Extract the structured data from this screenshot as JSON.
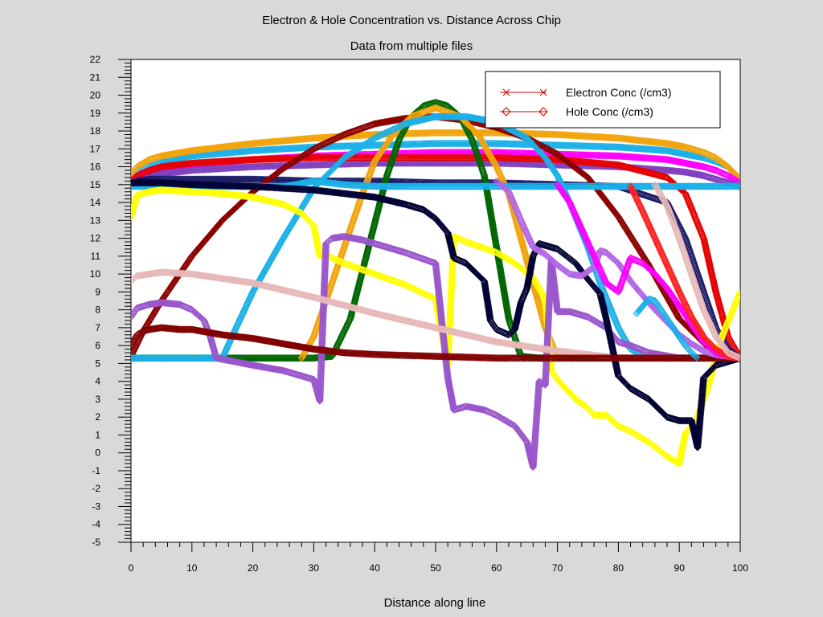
{
  "chart_data": {
    "type": "line",
    "title": "Electron & Hole Concentration vs. Distance Across Chip",
    "subtitle": "Data from multiple files",
    "xlabel": "Distance along line",
    "ylabel": "",
    "xlim": [
      0,
      100
    ],
    "ylim": [
      -5,
      22
    ],
    "x_ticks": [
      "0",
      "10",
      "20",
      "30",
      "40",
      "50",
      "60",
      "70",
      "80",
      "90",
      "100"
    ],
    "y_ticks": [
      "-5",
      "-4",
      "-3",
      "-2",
      "-1",
      "0",
      "1",
      "2",
      "3",
      "4",
      "5",
      "6",
      "7",
      "8",
      "9",
      "10",
      "11",
      "12",
      "13",
      "14",
      "15",
      "16",
      "17",
      "18",
      "19",
      "20",
      "21",
      "22"
    ],
    "grid": false,
    "legend": {
      "position": "top-right",
      "entries": [
        {
          "label": "Electron Conc (/cm3)",
          "color": "#cc0000",
          "marker": "x"
        },
        {
          "label": "Hole Conc (/cm3)",
          "color": "#cc0000",
          "marker": "diamond"
        }
      ]
    },
    "series": [
      {
        "color": "#1ab0e8",
        "marker": "diamond",
        "x": [
          0,
          1,
          3,
          5,
          10,
          20,
          30,
          40,
          50,
          60,
          70,
          80,
          88,
          91,
          94,
          96,
          98,
          100
        ],
        "y": [
          15.4,
          15.8,
          16.1,
          16.3,
          16.6,
          16.9,
          17.1,
          17.2,
          17.3,
          17.3,
          17.2,
          17.1,
          16.9,
          16.7,
          16.5,
          16.3,
          16.0,
          15.2
        ]
      },
      {
        "color": "#f2a30a",
        "marker": "diamond",
        "x": [
          0,
          1,
          3,
          5,
          10,
          20,
          30,
          40,
          50,
          60,
          70,
          80,
          88,
          91,
          94,
          96,
          98,
          100
        ],
        "y": [
          15.6,
          16.0,
          16.4,
          16.6,
          16.9,
          17.3,
          17.6,
          17.8,
          17.9,
          17.9,
          17.8,
          17.6,
          17.3,
          17.1,
          16.8,
          16.5,
          16.0,
          15.3
        ]
      },
      {
        "color": "#ff00ff",
        "marker": "diamond",
        "x": [
          0,
          1,
          3,
          5,
          10,
          20,
          30,
          40,
          50,
          60,
          70,
          80,
          88,
          91,
          94,
          96,
          98,
          100
        ],
        "y": [
          15.1,
          15.4,
          15.7,
          15.9,
          16.1,
          16.4,
          16.6,
          16.7,
          16.8,
          16.8,
          16.7,
          16.6,
          16.4,
          16.2,
          16.0,
          15.8,
          15.5,
          15.1
        ]
      },
      {
        "color": "#7f3fbf",
        "marker": "diamond",
        "x": [
          0,
          1,
          3,
          5,
          10,
          20,
          30,
          40,
          50,
          60,
          70,
          80,
          88,
          91,
          94,
          96,
          98,
          100
        ],
        "y": [
          15.0,
          15.3,
          15.5,
          15.6,
          15.8,
          16.0,
          16.1,
          16.2,
          16.2,
          16.2,
          16.1,
          16.0,
          15.8,
          15.7,
          15.5,
          15.3,
          15.1,
          14.9
        ]
      },
      {
        "color": "#e60000",
        "marker": "diamond",
        "x": [
          0,
          1,
          3,
          5,
          10,
          20,
          30,
          40,
          50,
          60,
          70,
          80,
          88,
          91,
          94,
          96,
          98,
          100
        ],
        "y": [
          15.2,
          15.5,
          15.8,
          16.0,
          16.2,
          16.4,
          16.5,
          16.5,
          16.5,
          16.5,
          16.4,
          16.1,
          15.4,
          14.5,
          12.0,
          9.0,
          6.5,
          5.3
        ]
      },
      {
        "color": "#1a1a66",
        "marker": "diamond",
        "x": [
          0,
          1,
          3,
          5,
          10,
          20,
          30,
          40,
          50,
          60,
          70,
          80,
          88,
          91,
          94,
          96,
          98,
          100
        ],
        "y": [
          15.0,
          15.2,
          15.3,
          15.3,
          15.3,
          15.3,
          15.2,
          15.2,
          15.1,
          15.1,
          15.0,
          14.9,
          14.0,
          12.0,
          9.0,
          7.0,
          5.8,
          5.3
        ]
      },
      {
        "color": "#8c0000",
        "marker": "diamond",
        "x": [
          0,
          2,
          5,
          10,
          15,
          20,
          25,
          30,
          35,
          40,
          45,
          50,
          55,
          60,
          65,
          70,
          75,
          80,
          85,
          90,
          95,
          100
        ],
        "y": [
          5.4,
          6.8,
          8.5,
          11.0,
          13.0,
          14.6,
          15.9,
          17.0,
          17.8,
          18.4,
          18.7,
          18.8,
          18.6,
          18.2,
          17.6,
          16.7,
          15.4,
          13.2,
          10.5,
          7.5,
          5.8,
          5.3
        ]
      },
      {
        "color": "#006600",
        "marker": "diamond",
        "x": [
          0,
          10,
          20,
          30,
          33,
          36,
          39,
          42,
          44,
          46,
          48,
          50,
          52,
          54,
          56,
          58,
          60,
          62,
          64,
          67,
          70,
          80,
          90,
          100
        ],
        "y": [
          5.3,
          5.3,
          5.3,
          5.3,
          5.4,
          7.5,
          11.5,
          15.5,
          17.5,
          18.8,
          19.4,
          19.6,
          19.4,
          18.8,
          17.5,
          15.5,
          11.5,
          7.5,
          5.4,
          5.3,
          5.3,
          5.3,
          5.3,
          5.3
        ]
      },
      {
        "color": "#f2a30a",
        "marker": "diamond",
        "x": [
          28,
          30,
          32,
          35,
          38,
          40,
          43,
          46,
          50,
          54,
          57,
          60,
          62,
          64,
          66,
          68,
          70
        ],
        "y": [
          5.3,
          6.5,
          8.5,
          11.5,
          14.5,
          16.3,
          17.8,
          18.8,
          19.3,
          18.8,
          17.8,
          16.0,
          14.5,
          12.0,
          9.5,
          7.0,
          5.3
        ]
      },
      {
        "color": "#1ab0e8",
        "marker": "diamond",
        "x": [
          0,
          10,
          15,
          17,
          20,
          25,
          30,
          35,
          40,
          45,
          50,
          55,
          60,
          65,
          68,
          70,
          72,
          75,
          77,
          80,
          82,
          85,
          88,
          92,
          94,
          96,
          100
        ],
        "y": [
          5.3,
          5.3,
          5.3,
          6.8,
          9.0,
          12.0,
          14.8,
          16.5,
          17.6,
          18.4,
          18.8,
          18.8,
          18.5,
          17.6,
          16.5,
          15.5,
          14.0,
          11.5,
          9.5,
          7.0,
          5.8,
          5.3,
          5.3,
          5.3,
          5.3,
          5.3,
          5.3
        ]
      },
      {
        "color": "#1ab0e8",
        "marker": "diamond",
        "x": [
          0,
          5,
          10,
          15,
          20,
          25,
          27,
          30,
          35,
          40,
          45,
          50,
          55,
          60,
          65,
          70,
          75,
          80,
          85,
          90,
          95,
          100
        ],
        "y": [
          14.9,
          14.9,
          14.9,
          14.9,
          14.9,
          14.9,
          15.0,
          15.2,
          15.0,
          14.9,
          14.9,
          14.9,
          14.9,
          14.9,
          14.9,
          14.9,
          14.9,
          14.9,
          14.9,
          14.9,
          14.9,
          14.9
        ]
      },
      {
        "color": "#ffff00",
        "marker": "diamond",
        "x": [
          0,
          1,
          3,
          5,
          10,
          15,
          20,
          25,
          28,
          30,
          31,
          32,
          33,
          35,
          40,
          45,
          50,
          52,
          53,
          55,
          60,
          63,
          66,
          68,
          69,
          70,
          73,
          75,
          76,
          78,
          80,
          82,
          85,
          88,
          90,
          91,
          92,
          93,
          95,
          97,
          100
        ],
        "y": [
          13.2,
          14.4,
          14.6,
          14.7,
          14.6,
          14.5,
          14.3,
          13.9,
          13.4,
          12.7,
          11.0,
          11.1,
          10.9,
          10.6,
          10.0,
          9.4,
          8.6,
          4.9,
          12.1,
          11.8,
          11.2,
          10.6,
          9.8,
          8.6,
          4.6,
          4.1,
          3.0,
          2.5,
          2.1,
          2.1,
          1.5,
          1.2,
          0.6,
          -0.2,
          -0.6,
          1.1,
          1.5,
          2.0,
          4.0,
          6.5,
          9.0
        ]
      },
      {
        "color": "#9955cc",
        "marker": "diamond",
        "x": [
          0,
          1,
          3,
          5,
          8,
          10,
          12,
          13,
          14,
          20,
          25,
          30,
          31,
          32,
          33,
          35,
          38,
          40,
          45,
          50,
          52,
          53,
          55,
          58,
          60,
          63,
          65,
          66,
          67,
          68,
          69,
          70,
          72,
          75,
          78,
          80,
          82,
          85,
          90,
          95,
          100
        ],
        "y": [
          7.6,
          8.1,
          8.3,
          8.4,
          8.3,
          8.0,
          7.4,
          6.5,
          5.3,
          4.9,
          4.6,
          4.1,
          2.9,
          11.7,
          12.0,
          12.1,
          11.9,
          11.7,
          11.2,
          10.6,
          4.2,
          2.4,
          2.6,
          2.4,
          2.1,
          1.5,
          0.6,
          -0.8,
          4.0,
          3.8,
          10.8,
          7.9,
          7.9,
          7.6,
          7.0,
          6.2,
          6.0,
          5.6,
          5.3,
          5.3,
          5.3
        ]
      },
      {
        "color": "#e8b8b8",
        "marker": "diamond",
        "x": [
          0,
          1,
          3,
          5,
          10,
          20,
          30,
          40,
          50,
          60,
          70,
          80,
          90,
          100
        ],
        "y": [
          9.6,
          9.9,
          10.0,
          10.1,
          10.0,
          9.5,
          8.7,
          7.8,
          7.0,
          6.2,
          5.7,
          5.3,
          5.3,
          5.3
        ]
      },
      {
        "color": "#000033",
        "marker": "diamond",
        "x": [
          0,
          5,
          10,
          20,
          30,
          40,
          45,
          48,
          50,
          52,
          53,
          55,
          58,
          59,
          60,
          62,
          63,
          64,
          65,
          66,
          67,
          70,
          73,
          75,
          77,
          78,
          80,
          82,
          85,
          88,
          90,
          92,
          93,
          94,
          96,
          100
        ],
        "y": [
          15.1,
          15.1,
          15.0,
          14.9,
          14.7,
          14.3,
          13.9,
          13.6,
          13.1,
          12.3,
          10.9,
          10.6,
          9.6,
          7.4,
          6.9,
          6.6,
          6.9,
          8.4,
          9.2,
          11.0,
          11.7,
          11.4,
          10.6,
          9.7,
          8.9,
          7.5,
          4.3,
          3.6,
          3.0,
          2.0,
          1.8,
          1.8,
          0.3,
          4.2,
          4.9,
          5.3
        ]
      },
      {
        "color": "#800000",
        "marker": "diamond",
        "x": [
          0,
          1,
          2,
          3,
          5,
          8,
          10,
          15,
          20,
          25,
          30,
          35,
          40,
          50,
          60,
          70,
          80,
          90,
          100
        ],
        "y": [
          6.0,
          6.6,
          6.8,
          6.9,
          7.0,
          6.9,
          6.9,
          6.6,
          6.4,
          6.1,
          5.8,
          5.6,
          5.5,
          5.4,
          5.3,
          5.3,
          5.3,
          5.3,
          5.3
        ]
      },
      {
        "color": "#b266e6",
        "marker": "diamond",
        "x": [
          60,
          62,
          64,
          66,
          68,
          70,
          72,
          74,
          76,
          77,
          78,
          80,
          82,
          84,
          86,
          88,
          90,
          92,
          94,
          96,
          98,
          100
        ],
        "y": [
          15.2,
          14.6,
          13.0,
          11.5,
          11.1,
          10.5,
          10.0,
          9.9,
          10.4,
          11.3,
          11.2,
          10.6,
          9.6,
          8.8,
          8.0,
          7.3,
          6.6,
          6.1,
          5.7,
          5.5,
          5.4,
          5.3
        ]
      },
      {
        "color": "#ff00ff",
        "marker": "diamond",
        "x": [
          70,
          72,
          74,
          76,
          78,
          80,
          82,
          84,
          86,
          88,
          90,
          92,
          94,
          96,
          98,
          100
        ],
        "y": [
          15.0,
          14.0,
          12.5,
          11.0,
          9.5,
          9.0,
          10.9,
          10.6,
          10.0,
          9.2,
          8.2,
          7.2,
          6.2,
          5.6,
          5.4,
          5.3
        ]
      },
      {
        "color": "#ff2020",
        "marker": "diamond",
        "x": [
          82,
          84,
          86,
          88,
          90,
          92,
          94,
          96,
          98,
          100
        ],
        "y": [
          14.9,
          13.5,
          12.0,
          10.5,
          9.0,
          7.6,
          6.5,
          5.8,
          5.4,
          5.3
        ]
      },
      {
        "color": "#e8b8b8",
        "marker": "diamond",
        "x": [
          86,
          88,
          90,
          92,
          94,
          96,
          98,
          100
        ],
        "y": [
          15.0,
          13.8,
          12.0,
          10.0,
          8.0,
          6.5,
          5.6,
          5.3
        ]
      },
      {
        "color": "#1ab0e8",
        "marker": "diamond",
        "x": [
          83,
          85,
          86,
          87,
          88,
          89,
          90,
          91,
          92,
          93
        ],
        "y": [
          7.8,
          8.6,
          8.5,
          8.0,
          7.5,
          7.0,
          6.5,
          6.0,
          5.6,
          5.3
        ]
      }
    ]
  }
}
